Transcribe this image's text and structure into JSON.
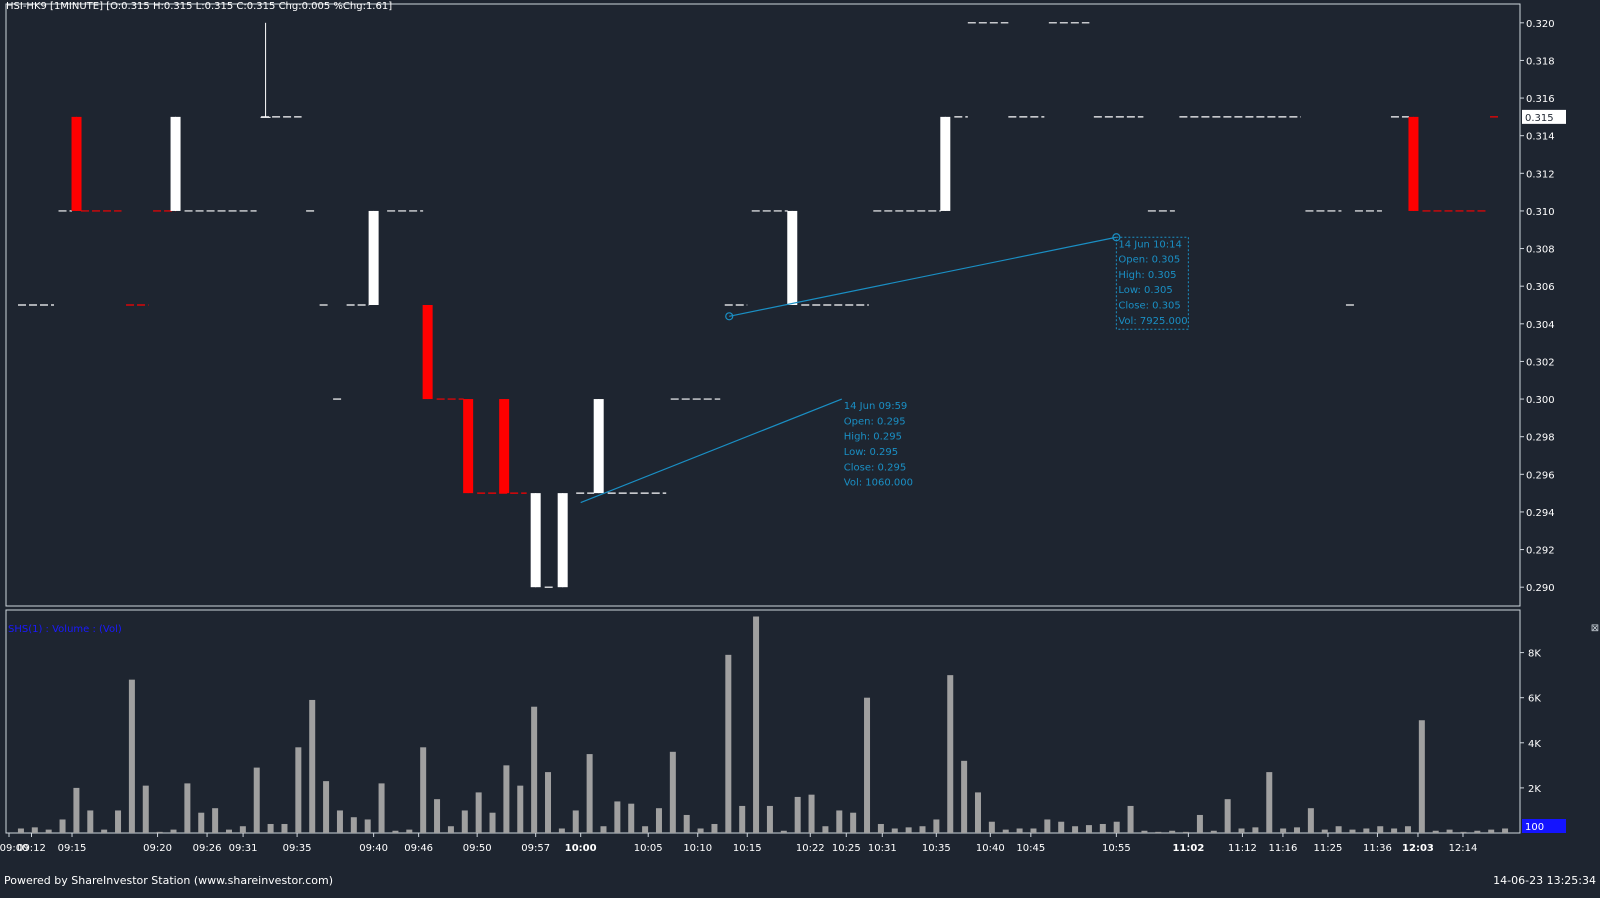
{
  "header": {
    "text": "HSI-HK9 [1MINUTE] [O:0.315 H:0.315 L:0.315 C:0.315 Chg:0.005 %Chg:1.61]"
  },
  "volume_panel": {
    "title": "SHS(1) : Volume : (Vol)",
    "close_icon": "close-icon",
    "current_value_tag": "100"
  },
  "footer": {
    "left": "Powered by ShareInvestor Station (www.shareinvestor.com)",
    "right": "14-06-23 13:25:34"
  },
  "colors": {
    "background": "#1e2530",
    "up": "#ffffff",
    "down": "#ff0000",
    "volume": "#a0a0a0",
    "annotation": "#1a8fc4",
    "price_tag_bg": "#ffffff",
    "volume_tag_bg": "#1414ff"
  },
  "chart_data": [
    {
      "type": "candlestick",
      "ylim": [
        0.289,
        0.321
      ],
      "y_ticks": [
        0.29,
        0.292,
        0.294,
        0.296,
        0.298,
        0.3,
        0.302,
        0.304,
        0.306,
        0.308,
        0.31,
        0.312,
        0.314,
        0.316,
        0.318,
        0.32
      ],
      "y_tick_labels": [
        "0.290",
        "0.292",
        "0.294",
        "0.296",
        "0.298",
        "0.300",
        "0.302",
        "0.304",
        "0.306",
        "0.308",
        "0.310",
        "0.312",
        "0.314",
        "0.316",
        "0.318",
        "0.320"
      ],
      "current_price_label": "0.315",
      "x_labels": [
        {
          "label": "09:00",
          "pos": 0
        },
        {
          "label": "09:12",
          "pos": 0.5
        },
        {
          "label": "09:15",
          "pos": 1.4
        },
        {
          "label": "09:20",
          "pos": 3.3
        },
        {
          "label": "09:26",
          "pos": 4.4
        },
        {
          "label": "09:31",
          "pos": 5.2
        },
        {
          "label": "09:35",
          "pos": 6.4
        },
        {
          "label": "09:40",
          "pos": 8.1
        },
        {
          "label": "09:46",
          "pos": 9.1
        },
        {
          "label": "09:50",
          "pos": 10.4
        },
        {
          "label": "09:57",
          "pos": 11.7
        },
        {
          "label": "10:00",
          "pos": 12.7,
          "bold": true
        },
        {
          "label": "10:05",
          "pos": 14.2
        },
        {
          "label": "10:10",
          "pos": 15.3
        },
        {
          "label": "10:15",
          "pos": 16.4
        },
        {
          "label": "10:22",
          "pos": 17.8
        },
        {
          "label": "10:25",
          "pos": 18.6
        },
        {
          "label": "10:31",
          "pos": 19.4
        },
        {
          "label": "10:35",
          "pos": 20.6
        },
        {
          "label": "10:40",
          "pos": 21.8
        },
        {
          "label": "10:45",
          "pos": 22.7
        },
        {
          "label": "10:55",
          "pos": 24.6
        },
        {
          "label": "11:02",
          "pos": 26.2,
          "bold": true
        },
        {
          "label": "11:12",
          "pos": 27.4
        },
        {
          "label": "11:16",
          "pos": 28.3
        },
        {
          "label": "11:25",
          "pos": 29.3
        },
        {
          "label": "11:36",
          "pos": 30.4
        },
        {
          "label": "12:03",
          "pos": 31.3,
          "bold": true
        },
        {
          "label": "12:14",
          "pos": 32.3
        }
      ],
      "candles": [
        {
          "pos": 1.5,
          "o": 0.31,
          "h": 0.315,
          "l": 0.31,
          "c": 0.315,
          "color": "down"
        },
        {
          "pos": 3.7,
          "o": 0.31,
          "h": 0.315,
          "l": 0.31,
          "c": 0.315,
          "color": "up"
        },
        {
          "pos": 5.7,
          "o": 0.315,
          "h": 0.32,
          "l": 0.315,
          "c": 0.315,
          "color": "up"
        },
        {
          "pos": 8.1,
          "o": 0.305,
          "h": 0.31,
          "l": 0.305,
          "c": 0.31,
          "color": "up"
        },
        {
          "pos": 9.3,
          "o": 0.305,
          "h": 0.305,
          "l": 0.3,
          "c": 0.3,
          "color": "down"
        },
        {
          "pos": 10.2,
          "o": 0.3,
          "h": 0.3,
          "l": 0.295,
          "c": 0.295,
          "color": "down"
        },
        {
          "pos": 11.0,
          "o": 0.3,
          "h": 0.3,
          "l": 0.295,
          "c": 0.295,
          "color": "down"
        },
        {
          "pos": 11.7,
          "o": 0.29,
          "h": 0.295,
          "l": 0.29,
          "c": 0.295,
          "color": "up"
        },
        {
          "pos": 12.3,
          "o": 0.29,
          "h": 0.295,
          "l": 0.29,
          "c": 0.295,
          "color": "up"
        },
        {
          "pos": 13.1,
          "o": 0.295,
          "h": 0.3,
          "l": 0.295,
          "c": 0.3,
          "color": "up"
        },
        {
          "pos": 17.4,
          "o": 0.305,
          "h": 0.31,
          "l": 0.305,
          "c": 0.31,
          "color": "up"
        },
        {
          "pos": 20.8,
          "o": 0.31,
          "h": 0.315,
          "l": 0.31,
          "c": 0.315,
          "color": "up"
        },
        {
          "pos": 31.2,
          "o": 0.31,
          "h": 0.315,
          "l": 0.31,
          "c": 0.315,
          "color": "down"
        }
      ],
      "dashes": [
        {
          "from": 0.2,
          "to": 1.0,
          "y": 0.305,
          "color": "up"
        },
        {
          "from": 1.1,
          "to": 1.4,
          "y": 0.31,
          "color": "up"
        },
        {
          "from": 1.6,
          "to": 2.5,
          "y": 0.31,
          "color": "down"
        },
        {
          "from": 2.6,
          "to": 3.1,
          "y": 0.305,
          "color": "down"
        },
        {
          "from": 3.2,
          "to": 3.7,
          "y": 0.31,
          "color": "down"
        },
        {
          "from": 3.9,
          "to": 5.5,
          "y": 0.31,
          "color": "up"
        },
        {
          "from": 5.6,
          "to": 6.5,
          "y": 0.315,
          "color": "up"
        },
        {
          "from": 6.6,
          "to": 6.8,
          "y": 0.31,
          "color": "up"
        },
        {
          "from": 6.9,
          "to": 7.1,
          "y": 0.305,
          "color": "up"
        },
        {
          "from": 7.2,
          "to": 7.4,
          "y": 0.3,
          "color": "up"
        },
        {
          "from": 7.5,
          "to": 8.0,
          "y": 0.305,
          "color": "up"
        },
        {
          "from": 8.4,
          "to": 9.2,
          "y": 0.31,
          "color": "up"
        },
        {
          "from": 9.5,
          "to": 10.1,
          "y": 0.3,
          "color": "down"
        },
        {
          "from": 10.4,
          "to": 11.5,
          "y": 0.295,
          "color": "down"
        },
        {
          "from": 11.9,
          "to": 12.1,
          "y": 0.29,
          "color": "up"
        },
        {
          "from": 12.6,
          "to": 13.0,
          "y": 0.295,
          "color": "up"
        },
        {
          "from": 13.3,
          "to": 14.6,
          "y": 0.295,
          "color": "up"
        },
        {
          "from": 14.7,
          "to": 15.8,
          "y": 0.3,
          "color": "up"
        },
        {
          "from": 15.9,
          "to": 16.4,
          "y": 0.305,
          "color": "up"
        },
        {
          "from": 16.5,
          "to": 17.3,
          "y": 0.31,
          "color": "up"
        },
        {
          "from": 17.6,
          "to": 19.1,
          "y": 0.305,
          "color": "up"
        },
        {
          "from": 19.2,
          "to": 20.7,
          "y": 0.31,
          "color": "up"
        },
        {
          "from": 21.0,
          "to": 21.3,
          "y": 0.315,
          "color": "up"
        },
        {
          "from": 21.3,
          "to": 22.2,
          "y": 0.32,
          "color": "up"
        },
        {
          "from": 22.2,
          "to": 23.0,
          "y": 0.315,
          "color": "up"
        },
        {
          "from": 23.1,
          "to": 24.0,
          "y": 0.32,
          "color": "up"
        },
        {
          "from": 24.1,
          "to": 25.2,
          "y": 0.315,
          "color": "up"
        },
        {
          "from": 25.3,
          "to": 25.9,
          "y": 0.31,
          "color": "up"
        },
        {
          "from": 26.0,
          "to": 28.7,
          "y": 0.315,
          "color": "up"
        },
        {
          "from": 28.8,
          "to": 29.6,
          "y": 0.31,
          "color": "up"
        },
        {
          "from": 29.7,
          "to": 29.9,
          "y": 0.305,
          "color": "up"
        },
        {
          "from": 29.9,
          "to": 30.5,
          "y": 0.31,
          "color": "up"
        },
        {
          "from": 30.7,
          "to": 31.1,
          "y": 0.315,
          "color": "up"
        },
        {
          "from": 31.4,
          "to": 32.8,
          "y": 0.31,
          "color": "down"
        },
        {
          "from": 32.9,
          "to": 33.1,
          "y": 0.315,
          "color": "down"
        }
      ],
      "annotations": [
        {
          "lines": [
            "14 Jun 10:14",
            "Open: 0.305",
            "High: 0.305",
            "Low: 0.305",
            "Close: 0.305",
            "Vol: 7925.000"
          ],
          "anchor": {
            "pos": 16.0,
            "y": 0.3044
          },
          "tip": {
            "pos": 24.6,
            "y": 0.3086
          },
          "boxed": true
        },
        {
          "lines": [
            "14 Jun 09:59",
            "Open: 0.295",
            "High: 0.295",
            "Low: 0.295",
            "Close: 0.295",
            "Vol: 1060.000"
          ],
          "anchor": {
            "pos": 12.7,
            "y": 0.2945
          },
          "tip": {
            "pos": 18.5,
            "y": 0.3
          },
          "boxed": false
        }
      ]
    },
    {
      "type": "bar",
      "title": "SHS(1) : Volume : (Vol)",
      "ylim": [
        0,
        9800
      ],
      "y_ticks": [
        2000,
        4000,
        6000,
        8000
      ],
      "y_tick_labels": [
        "2K",
        "4K",
        "6K",
        "8K"
      ],
      "current_value_label": "100",
      "values": [
        200,
        250,
        150,
        600,
        2000,
        1000,
        150,
        1000,
        6800,
        2100,
        50,
        150,
        2200,
        900,
        1100,
        150,
        300,
        2900,
        400,
        400,
        3800,
        5900,
        2300,
        1000,
        700,
        600,
        2200,
        100,
        150,
        3800,
        1500,
        300,
        1000,
        1800,
        900,
        3000,
        2100,
        5600,
        2700,
        200,
        1000,
        3500,
        300,
        1400,
        1300,
        300,
        1100,
        3600,
        800,
        200,
        400,
        7900,
        1200,
        9600,
        1200,
        100,
        1600,
        1700,
        300,
        1000,
        900,
        6000,
        400,
        200,
        250,
        300,
        600,
        7000,
        3200,
        1800,
        500,
        150,
        200,
        200,
        600,
        500,
        300,
        350,
        400,
        500,
        1200,
        100,
        50,
        100,
        50,
        800,
        100,
        1500,
        200,
        250,
        2700,
        200,
        250,
        1100,
        150,
        300,
        150,
        200,
        300,
        200,
        300,
        5000,
        100,
        150,
        50,
        100,
        150,
        200
      ]
    }
  ]
}
